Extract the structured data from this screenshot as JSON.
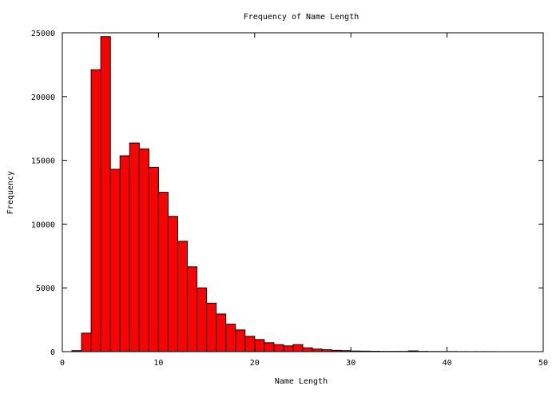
{
  "chart_data": {
    "type": "bar",
    "title": "Frequency of Name Length",
    "xlabel": "Name Length",
    "ylabel": "Frequency",
    "xlim": [
      0,
      50
    ],
    "ylim": [
      0,
      25000
    ],
    "xticks": [
      "0",
      "10",
      "20",
      "30",
      "40",
      "50"
    ],
    "yticks": [
      "0",
      "5000",
      "10000",
      "15000",
      "20000",
      "25000"
    ],
    "bar_width": 1,
    "x": [
      0,
      1,
      2,
      3,
      4,
      5,
      6,
      7,
      8,
      9,
      10,
      11,
      12,
      13,
      14,
      15,
      16,
      17,
      18,
      19,
      20,
      21,
      22,
      23,
      24,
      25,
      26,
      27,
      28,
      29,
      30,
      31,
      32,
      33,
      34,
      35,
      36,
      37,
      38,
      39,
      40,
      41,
      42,
      43,
      44,
      45,
      46,
      47,
      48,
      49
    ],
    "values": [
      0,
      80,
      1450,
      22100,
      24700,
      14300,
      15350,
      16350,
      15900,
      14450,
      12500,
      10600,
      8650,
      6650,
      5000,
      3800,
      2950,
      2150,
      1700,
      1200,
      950,
      700,
      550,
      450,
      550,
      300,
      200,
      150,
      100,
      80,
      50,
      40,
      30,
      20,
      20,
      20,
      60,
      20,
      10,
      10,
      10,
      5,
      5,
      5,
      5,
      0,
      0,
      0,
      0,
      0
    ],
    "bar_color": "#ff0000",
    "grid": false,
    "legend": "none"
  }
}
